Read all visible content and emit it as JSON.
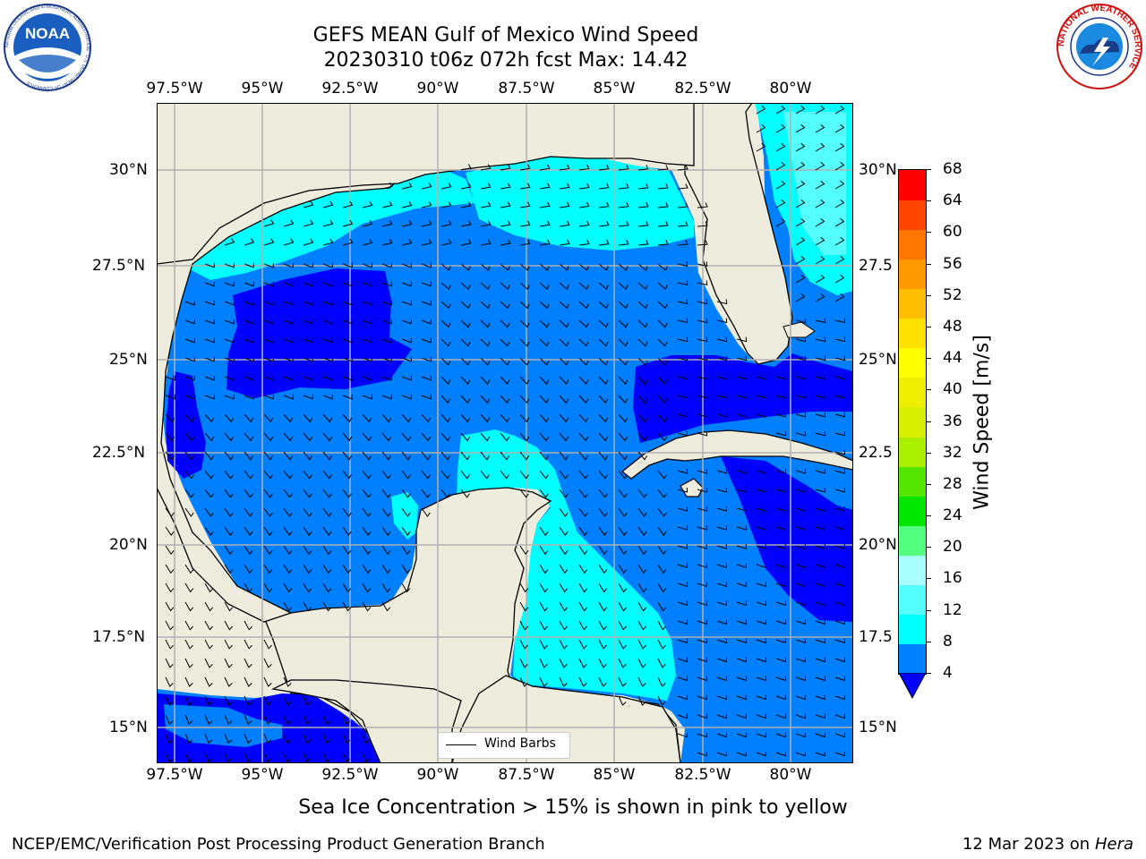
{
  "title": {
    "line1": "GEFS MEAN Gulf of Mexico Wind Speed",
    "line2": "20230310 t06z 072h fcst   Max: 14.42"
  },
  "logos": {
    "noaa": {
      "text": "NOAA",
      "ring_text": "NATIONAL OCEANIC AND ATMOSPHERIC ADMINISTRATION · U.S. DEPARTMENT OF COMMERCE"
    },
    "nws": {
      "ring_text": "NATIONAL WEATHER SERVICE"
    }
  },
  "map": {
    "lon_labels": [
      "97.5°W",
      "95°W",
      "92.5°W",
      "90°W",
      "87.5°W",
      "85°W",
      "82.5°W",
      "80°W"
    ],
    "lat_labels_left": [
      "30°N",
      "27.5°N",
      "25°N",
      "22.5°N",
      "20°N",
      "17.5°N",
      "15°N"
    ],
    "lat_labels_right": [
      "30°N",
      "27.5",
      "25°N",
      "22.5",
      "20°N",
      "17.5",
      "15°N"
    ],
    "legend": "Wind Barbs",
    "colors": {
      "land": "#eeecdc",
      "ocean_4_8": "#0080ff",
      "ocean_below_4": "#0000ff",
      "ocean_8_12": "#00ffff",
      "ocean_12_16": "#55ffff",
      "grid": "#b0b0b0"
    }
  },
  "colorbar": {
    "label": "Wind Speed [m/s]",
    "ticks": [
      "4",
      "8",
      "12",
      "16",
      "20",
      "24",
      "28",
      "32",
      "36",
      "40",
      "44",
      "48",
      "52",
      "56",
      "60",
      "64",
      "68"
    ],
    "colors": [
      "#0080ff",
      "#00ffff",
      "#55ffff",
      "#aaffff",
      "#55ff80",
      "#00e600",
      "#55e600",
      "#aaee00",
      "#d7f000",
      "#eef000",
      "#ffff00",
      "#ffe100",
      "#ffbf00",
      "#ff9900",
      "#ff7700",
      "#ff4500",
      "#ff0000"
    ],
    "under_color": "#0000ff"
  },
  "ice_note": "Sea Ice Concentration > 15% is shown in pink to yellow",
  "footer": {
    "left": "NCEP/EMC/Verification Post Processing Product Generation Branch",
    "date": "12 Mar 2023 on",
    "host": "Hera"
  }
}
